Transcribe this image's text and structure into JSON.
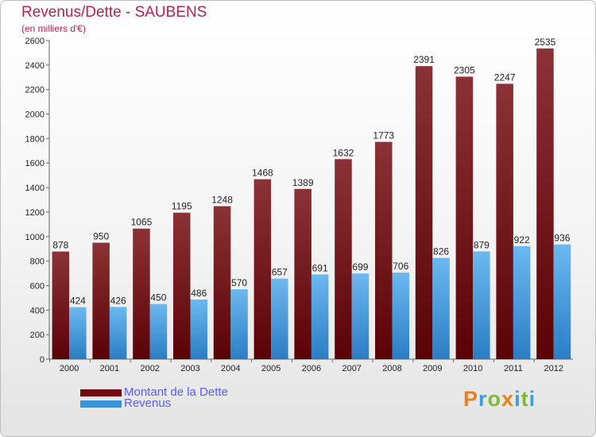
{
  "header": {
    "title": "Revenus/Dette - SAUBENS",
    "subtitle": "(en milliers d'€)"
  },
  "legend": {
    "items": [
      {
        "label": "Montant de la Dette",
        "color": "#6d0f12"
      },
      {
        "label": "Revenus",
        "color": "#3d93d8"
      }
    ]
  },
  "logo": {
    "letters": [
      "P",
      "r",
      "o",
      "x",
      "i",
      "t",
      "i"
    ],
    "colors": [
      "#e8801e",
      "#3da0d8",
      "#7cba36",
      "#e8801e",
      "#3da0d8",
      "#7cba36",
      "#3da0d8"
    ]
  },
  "chart_data": {
    "type": "bar",
    "title": "Revenus/Dette - SAUBENS",
    "ylabel": "(en milliers d'€)",
    "xlabel": "",
    "categories": [
      "2000",
      "2001",
      "2002",
      "2003",
      "2004",
      "2005",
      "2006",
      "2007",
      "2008",
      "2009",
      "2010",
      "2011",
      "2012"
    ],
    "series": [
      {
        "name": "Montant de la Dette",
        "color": "#6d0f12",
        "values": [
          878,
          950,
          1065,
          1195,
          1248,
          1468,
          1389,
          1632,
          1773,
          2391,
          2305,
          2247,
          2535
        ]
      },
      {
        "name": "Revenus",
        "color": "#3d93d8",
        "values": [
          424,
          426,
          450,
          486,
          570,
          657,
          691,
          699,
          706,
          826,
          879,
          922,
          936
        ]
      }
    ],
    "ylim": [
      0,
      2600
    ],
    "yticks": [
      0,
      200,
      400,
      600,
      800,
      1000,
      1200,
      1400,
      1600,
      1800,
      2000,
      2200,
      2400,
      2600
    ],
    "grid": false,
    "legend_position": "bottom-left"
  }
}
